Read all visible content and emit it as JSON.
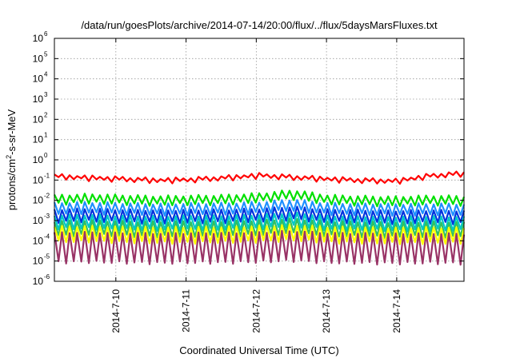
{
  "chart_data": {
    "type": "line",
    "title": "/data/run/goesPlots/archive/2014-07-14/20:00/flux/../flux/5daysMarsFluxes.txt",
    "xlabel": "Coordinated Universal Time (UTC)",
    "ylabel_base": "protons/cm",
    "ylabel_sup": "2",
    "ylabel_rest": "-s-sr-MeV",
    "yscale": "log",
    "ylim": [
      1e-06,
      1000000.0
    ],
    "yticks": [
      {
        "exp": "-6"
      },
      {
        "exp": "-5"
      },
      {
        "exp": "-4"
      },
      {
        "exp": "-3"
      },
      {
        "exp": "-2"
      },
      {
        "exp": "-1"
      },
      {
        "exp": "0"
      },
      {
        "exp": "1"
      },
      {
        "exp": "2"
      },
      {
        "exp": "3"
      },
      {
        "exp": "4"
      },
      {
        "exp": "5"
      },
      {
        "exp": "6"
      }
    ],
    "ytick_base": "10",
    "xlim": [
      "2014-07-09T03:00",
      "2014-07-14T23:00"
    ],
    "xticks": [
      {
        "label": "2014-7-10",
        "date": "2014-07-10T00:00"
      },
      {
        "label": "2014-7-11",
        "date": "2014-07-11T00:00"
      },
      {
        "label": "2014-7-12",
        "date": "2014-07-12T00:00"
      },
      {
        "label": "2014-7-13",
        "date": "2014-07-13T00:00"
      },
      {
        "label": "2014-7-14",
        "date": "2014-07-14T00:00"
      }
    ],
    "grid": true,
    "legend": "none",
    "series": [
      {
        "color": "#ff0000",
        "base": 0.17,
        "low_frac": 0.65,
        "trend": [
          0.19,
          0.16,
          0.14,
          0.12,
          0.13,
          0.16,
          0.21,
          0.17,
          0.14,
          0.12,
          0.11,
          0.2,
          0.26
        ]
      },
      {
        "color": "#00e000",
        "base": 0.018,
        "low_frac": 0.38,
        "trend": [
          0.018,
          0.02,
          0.018,
          0.016,
          0.017,
          0.018,
          0.022,
          0.032,
          0.018,
          0.016,
          0.015,
          0.017,
          0.016
        ]
      },
      {
        "color": "#1e90ff",
        "base": 0.0075,
        "low_frac": 0.3,
        "trend": [
          0.0075,
          0.008,
          0.0072,
          0.0066,
          0.007,
          0.0072,
          0.0082,
          0.011,
          0.0072,
          0.0068,
          0.0065,
          0.0068,
          0.0065
        ]
      },
      {
        "color": "#0033dd",
        "base": 0.0035,
        "low_frac": 0.25,
        "trend": [
          0.0035,
          0.0038,
          0.0034,
          0.0032,
          0.0033,
          0.0034,
          0.0038,
          0.0048,
          0.0034,
          0.0032,
          0.003,
          0.0032,
          0.003
        ]
      },
      {
        "color": "#00c8c8",
        "base": 0.0018,
        "low_frac": 0.22,
        "trend": [
          0.0018,
          0.0019,
          0.0017,
          0.0016,
          0.0017,
          0.0017,
          0.0019,
          0.0024,
          0.0017,
          0.0016,
          0.0015,
          0.0016,
          0.0015
        ]
      },
      {
        "color": "#30c060",
        "base": 0.0009,
        "low_frac": 0.2,
        "trend": [
          0.0009,
          0.001,
          0.0009,
          0.00085,
          0.00088,
          0.0009,
          0.001,
          0.0012,
          0.0009,
          0.00085,
          0.0008,
          0.00085,
          0.0008
        ]
      },
      {
        "color": "#ffff00",
        "base": 0.0005,
        "low_frac": 0.18,
        "trend": [
          0.0005,
          0.00052,
          0.00048,
          0.00045,
          0.00046,
          0.00048,
          0.00052,
          0.0006,
          0.00048,
          0.00045,
          0.00043,
          0.00045,
          0.00043
        ]
      },
      {
        "color": "#993366",
        "base": 0.00025,
        "low_frac": 0.035,
        "trend": [
          0.00025,
          0.00026,
          0.00024,
          0.00023,
          0.00024,
          0.00024,
          0.00026,
          0.0003,
          0.00024,
          0.00023,
          0.00022,
          0.00023,
          0.00022
        ]
      }
    ],
    "cycles": 54
  }
}
